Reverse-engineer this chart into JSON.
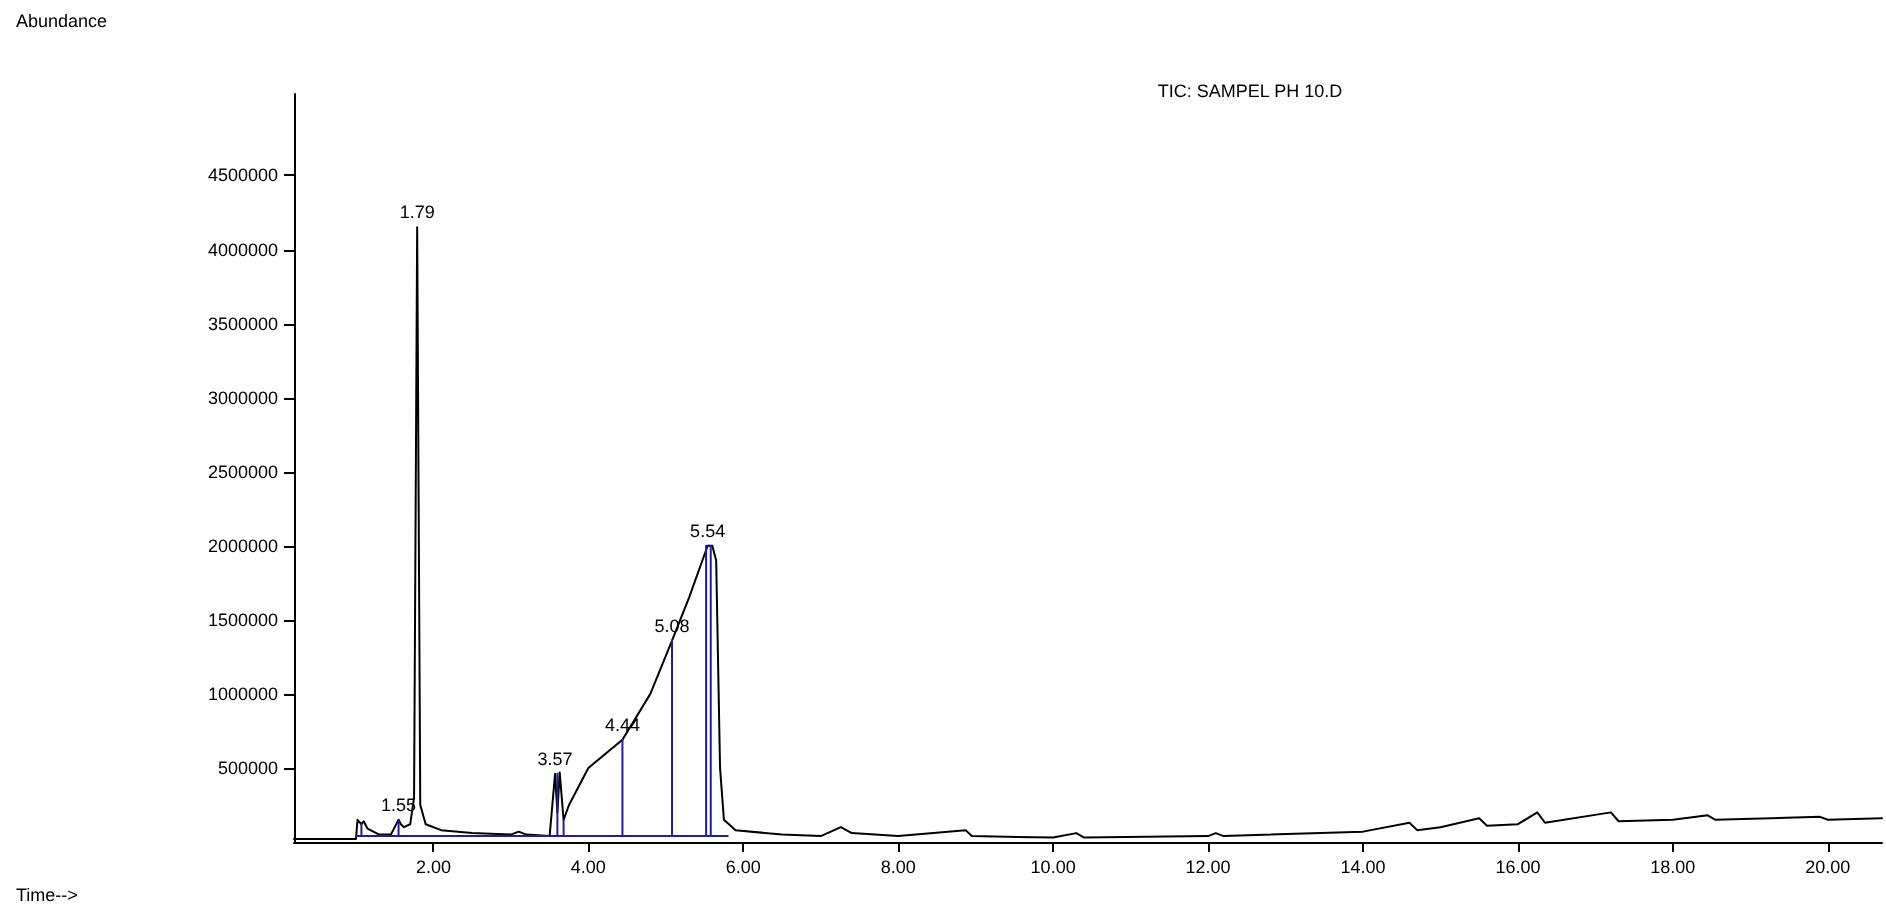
{
  "chart_data": {
    "type": "line",
    "title": "TIC: SAMPEL PH 10.D",
    "xlim": [
      0.2,
      20.7
    ],
    "ylim": [
      0,
      5050000
    ],
    "xticks": [
      {
        "value": 2,
        "label": "2.00"
      },
      {
        "value": 4,
        "label": "4.00"
      },
      {
        "value": 6,
        "label": "6.00"
      },
      {
        "value": 8,
        "label": "8.00"
      },
      {
        "value": 10,
        "label": "10.00"
      },
      {
        "value": 12,
        "label": "12.00"
      },
      {
        "value": 14,
        "label": "14.00"
      },
      {
        "value": 16,
        "label": "16.00"
      },
      {
        "value": 18,
        "label": "18.00"
      },
      {
        "value": 20,
        "label": "20.00"
      }
    ],
    "yticks": [
      500000,
      1000000,
      1500000,
      2000000,
      2500000,
      3000000,
      3500000,
      4000000,
      4500000
    ],
    "grid": false,
    "marker": "none",
    "line_style": "solid",
    "series": [
      {
        "color": "#000000",
        "x": [
          0.2,
          0.6,
          1.0,
          1.02,
          1.07,
          1.1,
          1.15,
          1.3,
          1.45,
          1.55,
          1.58,
          1.62,
          1.7,
          1.75,
          1.79,
          1.83,
          1.9,
          2.1,
          2.5,
          3.0,
          3.1,
          3.2,
          3.5,
          3.57,
          3.6,
          3.63,
          3.68,
          3.75,
          4.0,
          4.44,
          4.8,
          5.08,
          5.3,
          5.54,
          5.6,
          5.65,
          5.7,
          5.75,
          5.9,
          6.5,
          7.0,
          7.26,
          7.4,
          8.0,
          8.87,
          8.95,
          10.0,
          10.3,
          10.4,
          12.0,
          12.1,
          12.2,
          14.0,
          14.6,
          14.7,
          15.0,
          15.5,
          15.6,
          16.0,
          16.25,
          16.35,
          17.2,
          17.3,
          18.0,
          18.45,
          18.55,
          19.9,
          20.0,
          20.7
        ],
        "values": [
          20000,
          20000,
          20000,
          150000,
          120000,
          140000,
          90000,
          50000,
          50000,
          150000,
          120000,
          100000,
          120000,
          300000,
          4150000,
          250000,
          120000,
          80000,
          60000,
          50000,
          70000,
          50000,
          40000,
          460000,
          200000,
          470000,
          150000,
          250000,
          500000,
          690000,
          1000000,
          1360000,
          1650000,
          2000000,
          2000000,
          1900000,
          500000,
          150000,
          80000,
          50000,
          40000,
          100000,
          60000,
          40000,
          80000,
          40000,
          30000,
          60000,
          30000,
          40000,
          60000,
          40000,
          70000,
          130000,
          80000,
          100000,
          160000,
          110000,
          120000,
          200000,
          130000,
          200000,
          140000,
          150000,
          180000,
          150000,
          170000,
          150000,
          160000
        ]
      },
      {
        "color": "#1f1fa0",
        "x": [
          1.0,
          5.8,
          null,
          1.07,
          1.07,
          null,
          1.55,
          1.55,
          null,
          3.6,
          3.6,
          null,
          3.68,
          3.68,
          null,
          4.44,
          4.44,
          null,
          5.08,
          5.08,
          null,
          5.52,
          5.52,
          null,
          5.58,
          5.58
        ],
        "values": [
          40000,
          40000,
          null,
          40000,
          120000,
          null,
          40000,
          150000,
          null,
          40000,
          460000,
          null,
          40000,
          150000,
          null,
          40000,
          690000,
          null,
          40000,
          1360000,
          null,
          40000,
          2000000,
          null,
          40000,
          2000000
        ]
      }
    ],
    "annotations": [
      "Abundance",
      "Time-->",
      {
        "text": "1.55",
        "x": 1.55,
        "y": 150000
      },
      {
        "text": "1.79",
        "x": 1.79,
        "y": 4150000
      },
      {
        "text": "3.57",
        "x": 3.57,
        "y": 460000
      },
      {
        "text": "4.44",
        "x": 4.44,
        "y": 690000
      },
      {
        "text": "5.08",
        "x": 5.08,
        "y": 1360000
      },
      {
        "text": "5.54",
        "x": 5.54,
        "y": 2000000
      }
    ]
  }
}
